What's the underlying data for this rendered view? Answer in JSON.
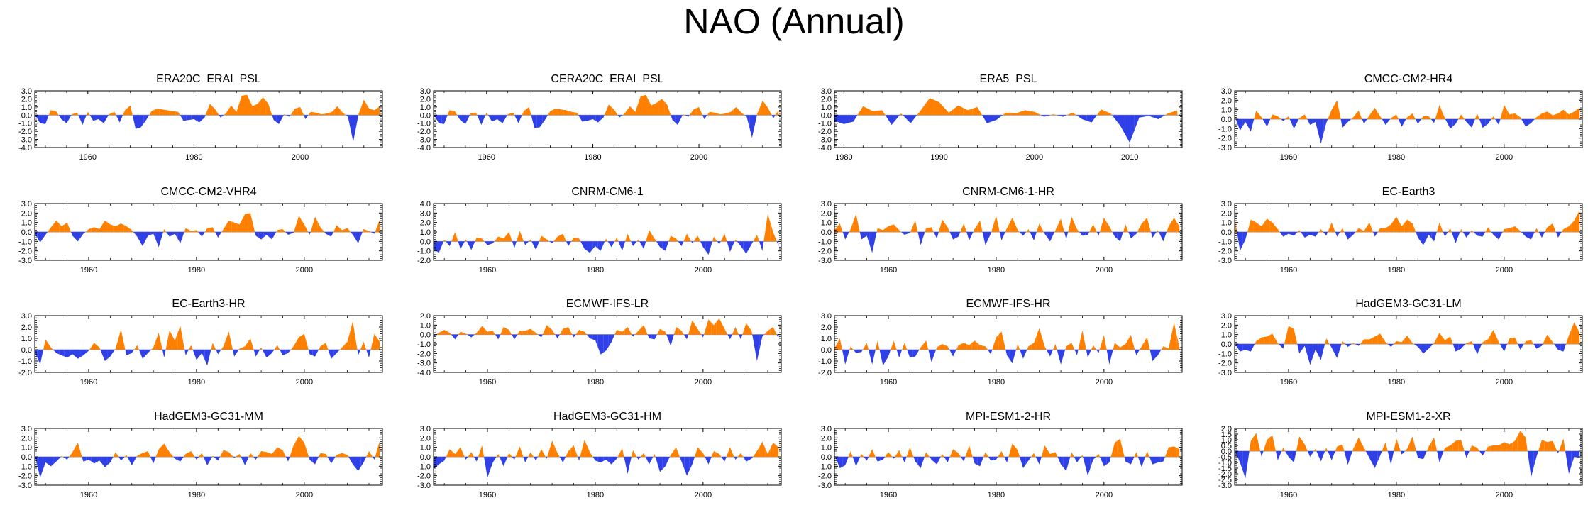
{
  "figure": {
    "title": "NAO (Annual)"
  },
  "colors": {
    "positive": "#ff8000",
    "negative": "#2f40e8",
    "frame": "#000000"
  },
  "chart_data": [
    {
      "type": "area",
      "title": "ERA20C_ERAI_PSL",
      "x_start": 1950,
      "x_end": 2015,
      "xticks": [
        1960,
        1980,
        2000
      ],
      "ylim": [
        -4.0,
        3.0
      ],
      "yticks": [
        -4.0,
        -3.0,
        -2.0,
        -1.0,
        0.0,
        1.0,
        2.0,
        3.0
      ],
      "values": [
        0.1,
        -1.0,
        -1.1,
        0.6,
        0.5,
        -0.5,
        -1.0,
        0.1,
        0.3,
        -1.2,
        0.4,
        -0.7,
        -0.5,
        -1.0,
        0.1,
        0.4,
        -0.9,
        0.6,
        1.2,
        -1.7,
        -1.5,
        -0.6,
        0.5,
        0.8,
        0.7,
        0.6,
        0.5,
        0.4,
        -0.7,
        -0.6,
        -0.5,
        -0.9,
        -0.3,
        1.4,
        0.7,
        -0.3,
        0.2,
        1.2,
        0.4,
        2.4,
        2.5,
        1.1,
        1.4,
        2.2,
        1.4,
        -0.6,
        -1.1,
        0.1,
        -0.2,
        0.8,
        1.0,
        -0.5,
        0.4,
        0.3,
        0.1,
        0.2,
        0.4,
        1.1,
        0.3,
        -0.2,
        -3.3,
        0.1,
        1.9,
        0.8,
        0.6,
        1.1
      ]
    },
    {
      "type": "area",
      "title": "CERA20C_ERAI_PSL",
      "x_start": 1950,
      "x_end": 2015,
      "xticks": [
        1960,
        1980,
        2000
      ],
      "ylim": [
        -4.0,
        3.0
      ],
      "yticks": [
        -4.0,
        -3.0,
        -2.0,
        -1.0,
        0.0,
        1.0,
        2.0,
        3.0
      ],
      "values": [
        0.1,
        -1.0,
        -1.1,
        0.6,
        0.5,
        -0.6,
        -1.1,
        0.2,
        0.3,
        -1.2,
        0.3,
        -0.8,
        -0.5,
        -1.0,
        0.1,
        0.3,
        -1.0,
        0.5,
        1.0,
        -1.6,
        -1.5,
        -0.6,
        0.5,
        0.8,
        0.7,
        0.6,
        0.4,
        0.3,
        -0.8,
        -0.7,
        -0.5,
        -0.9,
        -0.3,
        1.3,
        0.7,
        -0.3,
        0.2,
        1.1,
        0.4,
        2.3,
        2.5,
        1.2,
        1.5,
        2.0,
        1.3,
        -0.6,
        -1.2,
        0.1,
        -0.2,
        0.7,
        1.0,
        -0.5,
        0.4,
        0.3,
        0.1,
        0.2,
        0.4,
        1.0,
        0.3,
        -0.2,
        -2.8,
        0.2,
        1.8,
        0.9,
        -0.4,
        0.6
      ]
    },
    {
      "type": "area",
      "title": "ERA5_PSL",
      "x_start": 1979,
      "x_end": 2015,
      "xticks": [
        1980,
        1990,
        2000,
        2010
      ],
      "ylim": [
        -4.0,
        3.0
      ],
      "yticks": [
        -4.0,
        -3.0,
        -2.0,
        -1.0,
        0.0,
        1.0,
        2.0,
        3.0
      ],
      "values": [
        -0.7,
        -1.1,
        -0.8,
        1.1,
        0.5,
        0.6,
        -1.2,
        0.2,
        -1.0,
        0.5,
        2.1,
        1.6,
        0.3,
        1.2,
        0.6,
        1.0,
        -1.0,
        -0.6,
        0.3,
        0.2,
        0.6,
        0.4,
        -0.2,
        0.1,
        -0.2,
        0.3,
        -0.5,
        -0.9,
        0.7,
        0.2,
        -1.3,
        -3.4,
        -0.3,
        -0.1,
        -0.5,
        0.2,
        0.6
      ]
    },
    {
      "type": "area",
      "title": "CMCC-CM2-HR4",
      "x_start": 1950,
      "x_end": 2014,
      "xticks": [
        1960,
        1980,
        2000
      ],
      "ylim": [
        -3.0,
        3.0
      ],
      "yticks": [
        -3.0,
        -2.0,
        -1.0,
        0.0,
        1.0,
        2.0,
        3.0
      ],
      "values": [
        0.3,
        -1.2,
        -0.3,
        -1.3,
        0.9,
        0.2,
        -0.8,
        0.5,
        0.3,
        -0.2,
        0.3,
        -1.0,
        0.1,
        0.5,
        -0.6,
        -0.3,
        -2.6,
        -0.4,
        1.0,
        2.0,
        -0.9,
        -0.3,
        0.2,
        0.9,
        -0.5,
        0.4,
        1.2,
        0.3,
        -0.6,
        0.1,
        0.5,
        -0.8,
        0.2,
        0.6,
        -0.5,
        0.3,
        0.3,
        -0.4,
        1.5,
        0.1,
        -1.0,
        -0.5,
        0.5,
        -0.3,
        -0.9,
        0.6,
        -0.9,
        -0.5,
        0.3,
        -0.6,
        1.5,
        0.5,
        0.6,
        0.2,
        -0.8,
        -0.4,
        0.2,
        0.6,
        0.8,
        0.4,
        0.6,
        1.0,
        0.5,
        0.8,
        1.2
      ]
    },
    {
      "type": "area",
      "title": "CMCC-CM2-VHR4",
      "x_start": 1950,
      "x_end": 2014,
      "xticks": [
        1960,
        1980,
        2000
      ],
      "ylim": [
        -3.0,
        3.0
      ],
      "yticks": [
        -3.0,
        -2.0,
        -1.0,
        0.0,
        1.0,
        2.0,
        3.0
      ],
      "values": [
        -0.2,
        -1.1,
        -0.3,
        0.5,
        1.2,
        0.6,
        1.0,
        -0.4,
        -1.0,
        -0.2,
        0.3,
        0.5,
        0.3,
        1.2,
        0.8,
        0.6,
        0.9,
        0.6,
        0.2,
        -0.5,
        -1.5,
        -0.4,
        -0.2,
        -1.6,
        0.3,
        -0.5,
        -0.2,
        -1.2,
        0.4,
        0.1,
        0.2,
        -0.5,
        0.4,
        0.5,
        -0.6,
        0.3,
        1.2,
        1.0,
        0.8,
        1.9,
        2.0,
        -0.4,
        -0.8,
        -0.3,
        -0.8,
        0.2,
        0.3,
        -0.3,
        -0.1,
        1.7,
        0.8,
        -0.3,
        1.6,
        0.5,
        -0.2,
        -0.5,
        0.7,
        0.2,
        0.4,
        -0.3,
        -1.2,
        0.3,
        0.1,
        -0.2,
        1.3
      ]
    },
    {
      "type": "area",
      "title": "CNRM-CM6-1",
      "x_start": 1950,
      "x_end": 2014,
      "xticks": [
        1960,
        1980,
        2000
      ],
      "ylim": [
        -2.0,
        4.0
      ],
      "yticks": [
        -2.0,
        -1.0,
        0.0,
        1.0,
        2.0,
        3.0,
        4.0
      ],
      "values": [
        -0.8,
        -1.2,
        0.2,
        -0.5,
        1.0,
        -0.8,
        0.2,
        -0.9,
        0.4,
        0.3,
        -0.4,
        -0.2,
        0.5,
        0.3,
        1.0,
        -0.7,
        1.1,
        -0.4,
        0.2,
        -0.9,
        0.6,
        0.2,
        -0.2,
        0.5,
        0.8,
        -0.5,
        0.4,
        0.3,
        -0.8,
        -1.2,
        -0.5,
        -1.0,
        0.3,
        -0.6,
        0.4,
        -1.0,
        0.8,
        -0.5,
        0.2,
        -0.8,
        1.2,
        0.3,
        -0.6,
        -1.0,
        0.6,
        0.3,
        -0.5,
        0.8,
        -0.2,
        0.6,
        -0.6,
        -1.4,
        0.5,
        -0.3,
        0.8,
        -1.1,
        0.2,
        -0.5,
        -1.3,
        -0.3,
        0.7,
        -1.0,
        2.9,
        1.0,
        -0.5
      ]
    },
    {
      "type": "area",
      "title": "CNRM-CM6-1-HR",
      "x_start": 1950,
      "x_end": 2014,
      "xticks": [
        1960,
        1980,
        2000
      ],
      "ylim": [
        -3.0,
        3.0
      ],
      "yticks": [
        -3.0,
        -2.0,
        -1.0,
        0.0,
        1.0,
        2.0,
        3.0
      ],
      "values": [
        0.2,
        0.9,
        -0.8,
        0.3,
        1.9,
        -0.8,
        -0.4,
        -2.2,
        0.4,
        0.2,
        0.6,
        0.8,
        0.2,
        -0.3,
        -0.1,
        1.2,
        -1.4,
        0.4,
        0.5,
        -0.7,
        1.3,
        0.5,
        -0.8,
        -0.5,
        0.9,
        -0.9,
        0.3,
        1.2,
        -1.4,
        -0.2,
        1.7,
        -0.9,
        0.4,
        1.5,
        0.2,
        -0.4,
        0.3,
        -0.9,
        0.9,
        -0.2,
        -1.0,
        0.2,
        1.4,
        -0.8,
        1.6,
        0.3,
        -0.4,
        -0.3,
        0.8,
        -0.4,
        1.5,
        0.6,
        -0.5,
        -1.0,
        0.8,
        -0.7,
        -0.2,
        0.9,
        1.5,
        -0.6,
        0.2,
        -1.0,
        0.6,
        1.5,
        0.6
      ]
    },
    {
      "type": "area",
      "title": "EC-Earth3",
      "x_start": 1950,
      "x_end": 2014,
      "xticks": [
        1960,
        1980,
        2000
      ],
      "ylim": [
        -3.0,
        3.0
      ],
      "yticks": [
        -3.0,
        -2.0,
        -1.0,
        0.0,
        1.0,
        2.0,
        3.0
      ],
      "values": [
        1.5,
        -2.0,
        -0.8,
        1.3,
        1.0,
        0.6,
        1.4,
        1.0,
        0.3,
        -0.5,
        -0.2,
        -0.4,
        0.2,
        -0.6,
        -0.3,
        -0.5,
        0.3,
        -0.4,
        1.0,
        -0.5,
        0.4,
        -0.8,
        -0.3,
        0.4,
        0.1,
        1.0,
        -0.5,
        0.4,
        0.4,
        0.8,
        1.6,
        0.6,
        1.3,
        0.9,
        -0.6,
        -1.4,
        -0.3,
        -1.0,
        1.0,
        -0.5,
        0.4,
        -1.2,
        0.3,
        -0.6,
        0.2,
        -0.4,
        -0.5,
        0.5,
        -0.3,
        -0.8,
        0.3,
        0.4,
        0.6,
        0.1,
        -0.5,
        -0.8,
        0.4,
        -0.6,
        0.5,
        0.9,
        -0.6,
        0.3,
        0.6,
        1.2,
        2.3
      ]
    },
    {
      "type": "area",
      "title": "EC-Earth3-HR",
      "x_start": 1950,
      "x_end": 2014,
      "xticks": [
        1960,
        1980,
        2000
      ],
      "ylim": [
        -2.0,
        3.0
      ],
      "yticks": [
        -2.0,
        -1.0,
        0.0,
        1.0,
        2.0,
        3.0
      ],
      "values": [
        -0.2,
        -1.3,
        0.9,
        0.2,
        -0.3,
        -0.5,
        -0.7,
        -0.4,
        -0.8,
        -0.5,
        -0.1,
        0.6,
        0.2,
        -1.0,
        -0.6,
        0.1,
        1.8,
        -0.5,
        -0.3,
        0.4,
        -0.8,
        -0.3,
        0.2,
        1.5,
        -0.7,
        1.7,
        0.8,
        2.1,
        -0.5,
        0.4,
        -0.9,
        -0.3,
        -1.4,
        0.6,
        -0.4,
        0.3,
        1.6,
        -0.6,
        0.1,
        0.3,
        1.0,
        -0.6,
        0.2,
        -0.7,
        -0.3,
        0.4,
        -0.5,
        -0.3,
        0.3,
        1.1,
        1.4,
        -0.4,
        -0.6,
        0.3,
        0.6,
        -0.8,
        -0.3,
        0.2,
        0.7,
        2.5,
        -0.5,
        0.7,
        -0.7,
        1.4,
        0.7
      ]
    },
    {
      "type": "area",
      "title": "ECMWF-IFS-LR",
      "x_start": 1950,
      "x_end": 2014,
      "xticks": [
        1960,
        1980,
        2000
      ],
      "ylim": [
        -4.0,
        2.0
      ],
      "yticks": [
        -4.0,
        -3.0,
        -2.0,
        -1.0,
        0.0,
        1.0,
        2.0
      ],
      "values": [
        -0.2,
        0.2,
        0.5,
        0.2,
        -0.5,
        0.3,
        0.1,
        -0.3,
        0.2,
        0.9,
        0.3,
        0.4,
        -0.5,
        0.8,
        0.5,
        -0.5,
        0.4,
        0.4,
        0.6,
        0.2,
        -0.3,
        1.0,
        0.5,
        -0.4,
        0.6,
        0.8,
        -0.3,
        0.5,
        0.3,
        -0.4,
        -0.6,
        -2.1,
        -1.7,
        -0.8,
        0.5,
        0.3,
        0.8,
        -0.2,
        0.4,
        1.0,
        -0.4,
        -0.5,
        0.6,
        0.3,
        -1.2,
        0.8,
        0.4,
        -0.5,
        1.5,
        0.6,
        -0.3,
        1.6,
        1.0,
        1.7,
        0.6,
        -0.5,
        0.8,
        -0.5,
        1.2,
        0.4,
        -2.8,
        -0.2,
        0.4,
        0.8,
        -0.4
      ]
    },
    {
      "type": "area",
      "title": "ECMWF-IFS-HR",
      "x_start": 1950,
      "x_end": 2014,
      "xticks": [
        1960,
        1980,
        2000
      ],
      "ylim": [
        -2.0,
        3.0
      ],
      "yticks": [
        -2.0,
        -1.0,
        0.0,
        1.0,
        2.0,
        3.0
      ],
      "values": [
        0.1,
        1.0,
        -1.3,
        0.3,
        -0.3,
        -0.2,
        0.6,
        -1.3,
        0.8,
        -1.4,
        -0.6,
        0.8,
        -0.7,
        0.6,
        -0.7,
        -0.6,
        0.2,
        0.8,
        -1.1,
        0.2,
        0.5,
        0.3,
        -0.6,
        0.4,
        0.6,
        0.4,
        0.8,
        0.4,
        0.3,
        -0.4,
        1.1,
        1.6,
        -0.5,
        -1.2,
        0.5,
        -0.8,
        0.3,
        0.6,
        1.9,
        0.3,
        -0.6,
        0.5,
        -1.3,
        0.3,
        0.6,
        -0.5,
        1.7,
        -0.7,
        0.4,
        -0.3,
        1.3,
        -1.3,
        0.6,
        0.2,
        0.5,
        1.3,
        -0.5,
        0.3,
        1.1,
        -1.0,
        -0.5,
        0.3,
        0.1,
        2.4,
        0.2
      ]
    },
    {
      "type": "area",
      "title": "HadGEM3-GC31-LM",
      "x_start": 1950,
      "x_end": 2014,
      "xticks": [
        1960,
        1980,
        2000
      ],
      "ylim": [
        -3.0,
        3.0
      ],
      "yticks": [
        -3.0,
        -2.0,
        -1.0,
        0.0,
        1.0,
        2.0,
        3.0
      ],
      "values": [
        0.1,
        -0.8,
        -0.6,
        -0.8,
        0.3,
        0.7,
        0.8,
        1.1,
        0.1,
        -0.5,
        1.9,
        1.6,
        -1.0,
        -0.2,
        -2.2,
        -0.6,
        -1.7,
        0.6,
        -0.4,
        -1.5,
        0.3,
        -0.3,
        0.1,
        -0.2,
        0.5,
        0.5,
        0.8,
        1.1,
        0.2,
        -0.3,
        0.3,
        0.2,
        0.9,
        0.1,
        -0.3,
        -1.0,
        -0.5,
        0.1,
        1.2,
        0.4,
        0.8,
        -0.8,
        -0.5,
        0.1,
        0.3,
        -1.1,
        0.2,
        0.5,
        1.5,
        0.2,
        -0.8,
        0.6,
        0.7,
        -0.6,
        0.3,
        0.4,
        -0.5,
        -0.2,
        1.0,
        0.2,
        -0.6,
        -0.8,
        0.9,
        2.3,
        1.2
      ]
    },
    {
      "type": "area",
      "title": "HadGEM3-GC31-MM",
      "x_start": 1950,
      "x_end": 2014,
      "xticks": [
        1960,
        1980,
        2000
      ],
      "ylim": [
        -3.0,
        3.0
      ],
      "yticks": [
        -3.0,
        -2.0,
        -1.0,
        0.0,
        1.0,
        2.0,
        3.0
      ],
      "values": [
        0.2,
        -2.2,
        -0.6,
        -1.0,
        -0.5,
        0.1,
        -0.3,
        0.5,
        1.5,
        -0.5,
        -0.3,
        -0.7,
        -0.4,
        -1.1,
        -0.6,
        0.5,
        -0.4,
        0.2,
        -0.9,
        0.1,
        0.4,
        0.6,
        -0.7,
        0.8,
        1.4,
        0.5,
        -0.2,
        -0.5,
        0.3,
        0.6,
        -0.3,
        0.4,
        -0.9,
        0.1,
        -0.4,
        0.7,
        0.5,
        -0.1,
        0.3,
        -0.9,
        0.4,
        -0.3,
        0.6,
        0.5,
        0.3,
        1.0,
        0.7,
        -0.5,
        1.2,
        2.2,
        1.5,
        -0.3,
        -0.8,
        0.4,
        0.3,
        -0.7,
        0.2,
        0.4,
        0.2,
        -0.8,
        -1.5,
        -0.6,
        0.6,
        -0.3,
        1.7
      ]
    },
    {
      "type": "area",
      "title": "HadGEM3-GC31-HM",
      "x_start": 1950,
      "x_end": 2014,
      "xticks": [
        1960,
        1980,
        2000
      ],
      "ylim": [
        -3.0,
        3.0
      ],
      "yticks": [
        -3.0,
        -2.0,
        -1.0,
        0.0,
        1.0,
        2.0,
        3.0
      ],
      "values": [
        -1.3,
        -0.8,
        -0.4,
        0.8,
        0.3,
        1.0,
        -0.3,
        0.5,
        -0.5,
        1.2,
        -2.2,
        -0.6,
        0.3,
        -1.0,
        0.4,
        -0.3,
        1.1,
        -0.6,
        0.5,
        -0.4,
        0.8,
        -0.2,
        1.7,
        0.4,
        -0.6,
        0.6,
        1.2,
        -0.4,
        1.8,
        0.5,
        -0.4,
        -0.6,
        -0.3,
        -0.8,
        -0.2,
        0.9,
        -1.8,
        0.7,
        -0.3,
        0.4,
        -0.8,
        0.3,
        -1.6,
        -1.0,
        0.2,
        1.0,
        -0.5,
        -2.0,
        -0.8,
        1.0,
        0.4,
        -0.8,
        0.6,
        0.3,
        -0.5,
        1.0,
        -0.3,
        0.4,
        -0.5,
        -0.2,
        0.6,
        1.6,
        0.3,
        1.5,
        1.0
      ]
    },
    {
      "type": "area",
      "title": "MPI-ESM1-2-HR",
      "x_start": 1950,
      "x_end": 2014,
      "xticks": [
        1960,
        1980,
        2000
      ],
      "ylim": [
        -3.0,
        3.0
      ],
      "yticks": [
        -3.0,
        -2.0,
        -1.0,
        0.0,
        1.0,
        2.0,
        3.0
      ],
      "values": [
        0.2,
        -1.2,
        -0.9,
        0.6,
        -1.0,
        0.3,
        -0.4,
        0.8,
        -0.5,
        -0.3,
        0.5,
        -0.2,
        0.7,
        -0.6,
        1.0,
        -0.5,
        -1.2,
        0.5,
        -0.3,
        -0.8,
        0.3,
        -0.6,
        0.8,
        0.4,
        -0.5,
        1.2,
        -0.7,
        -1.0,
        0.5,
        -0.4,
        -0.3,
        0.6,
        -0.6,
        1.4,
        0.7,
        -1.2,
        -0.4,
        0.4,
        -0.8,
        1.2,
        0.3,
        0.5,
        -0.8,
        -1.5,
        0.5,
        -0.6,
        0.2,
        -2.0,
        -0.3,
        0.3,
        -1.0,
        -0.6,
        1.5,
        1.9,
        -0.5,
        -0.8,
        0.5,
        -1.1,
        0.6,
        -0.8,
        -0.6,
        -0.5,
        1.0,
        1.1,
        0.8
      ]
    },
    {
      "type": "area",
      "title": "MPI-ESM1-2-XR",
      "x_start": 1950,
      "x_end": 2014,
      "xticks": [
        1960,
        1980,
        2000
      ],
      "ylim": [
        -3.0,
        2.0
      ],
      "yticks": [
        -3.0,
        -2.5,
        -2.0,
        -1.5,
        -1.0,
        -0.5,
        0.0,
        0.5,
        1.0,
        1.5,
        2.0
      ],
      "values": [
        0.1,
        -1.0,
        -2.4,
        0.9,
        1.6,
        -0.5,
        1.0,
        1.4,
        -0.8,
        0.3,
        -0.5,
        -1.0,
        1.3,
        0.6,
        -0.5,
        0.2,
        -0.9,
        0.3,
        -0.8,
        0.4,
        0.6,
        -1.2,
        0.2,
        1.2,
        0.3,
        -0.6,
        -1.5,
        -0.4,
        0.8,
        -1.2,
        1.1,
        -0.3,
        0.2,
        1.3,
        -0.6,
        -0.7,
        0.4,
        1.2,
        -1.0,
        0.3,
        0.5,
        0.9,
        1.0,
        -0.6,
        0.5,
        0.3,
        -0.4,
        0.4,
        0.5,
        0.5,
        0.8,
        0.6,
        0.9,
        1.8,
        1.2,
        -2.3,
        -0.5,
        1.0,
        0.8,
        0.9,
        -0.2,
        1.1,
        -2.0,
        -0.5,
        -0.6
      ]
    }
  ]
}
